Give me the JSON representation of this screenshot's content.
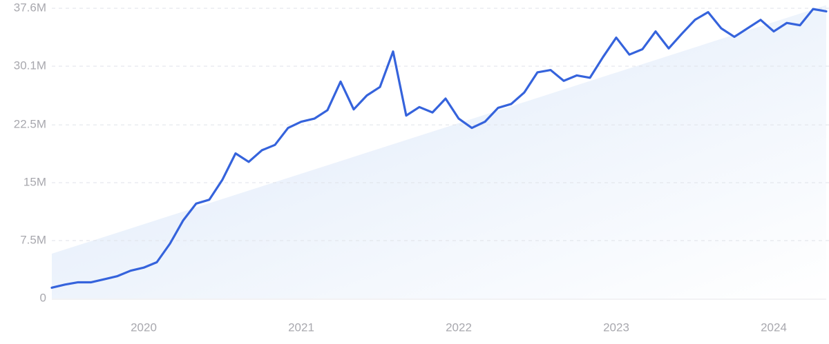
{
  "chart_data": {
    "type": "line",
    "categories": [
      null,
      null,
      null,
      null,
      null,
      null,
      null,
      "2020",
      null,
      null,
      null,
      null,
      null,
      null,
      null,
      null,
      null,
      null,
      null,
      "2021",
      null,
      null,
      null,
      null,
      null,
      null,
      null,
      null,
      null,
      null,
      null,
      "2022",
      null,
      null,
      null,
      null,
      null,
      null,
      null,
      null,
      null,
      null,
      null,
      "2023",
      null,
      null,
      null,
      null,
      null,
      null,
      null,
      null,
      null,
      null,
      null,
      "2024",
      null,
      null,
      null,
      null
    ],
    "series": [
      {
        "color": "#3563dc",
        "values": [
          1400000,
          1800000,
          2100000,
          2100000,
          2500000,
          2900000,
          3600000,
          4000000,
          4700000,
          7100000,
          10100000,
          12300000,
          12800000,
          15400000,
          18800000,
          17700000,
          19200000,
          19900000,
          22100000,
          22900000,
          23300000,
          24400000,
          28100000,
          24500000,
          26300000,
          27400000,
          32000000,
          23700000,
          24800000,
          24100000,
          25900000,
          23300000,
          22100000,
          22900000,
          24700000,
          25200000,
          26700000,
          29300000,
          29600000,
          28200000,
          28900000,
          28600000,
          31300000,
          33800000,
          31600000,
          32300000,
          34600000,
          32400000,
          34300000,
          36100000,
          37100000,
          35000000,
          33900000,
          35000000,
          36100000,
          34600000,
          35700000,
          35400000,
          37500000,
          37200000
        ]
      }
    ],
    "trend_values": [
      5800000,
      38000000
    ],
    "trend_color": "#dce8f9",
    "ylim": [
      0,
      37600000
    ],
    "yticks": [
      0,
      {
        "value": 7500000,
        "label": "7.5M"
      },
      {
        "value": 15000000,
        "label": "15M"
      },
      {
        "value": 22500000,
        "label": "22.5M"
      },
      {
        "value": 30100000,
        "label": "30.1M"
      },
      {
        "value": 37600000,
        "label": "37.6M"
      }
    ],
    "grid": true
  }
}
